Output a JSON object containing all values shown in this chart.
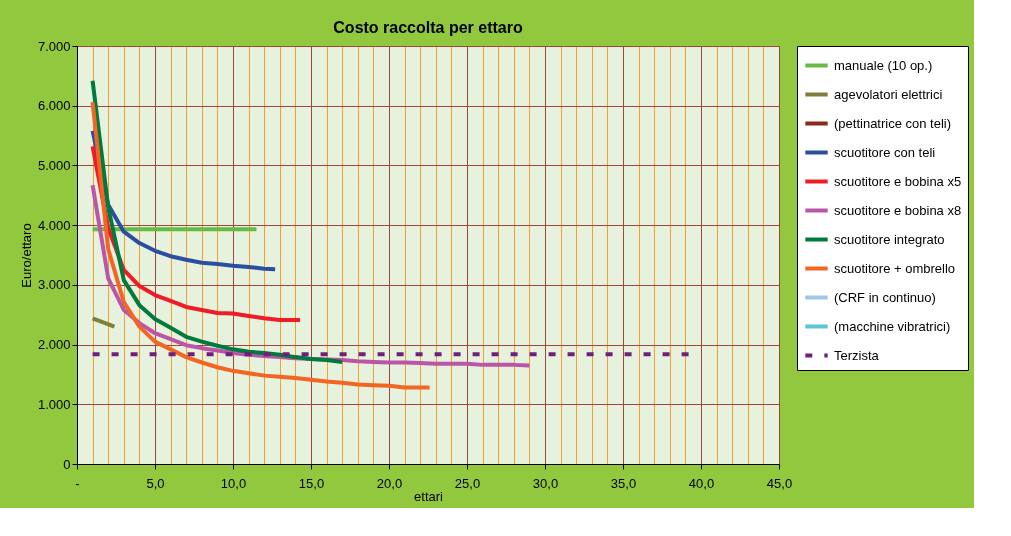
{
  "chart_data": {
    "type": "line",
    "title": "Costo raccolta per ettaro",
    "xlabel": "ettari",
    "ylabel": "Euro/ettaro",
    "xlim": [
      0,
      45
    ],
    "ylim": [
      0,
      7000
    ],
    "xticks": [
      {
        "value": 0,
        "label": "-"
      },
      {
        "value": 1,
        "label": null
      },
      {
        "value": 2,
        "label": null
      },
      {
        "value": 3,
        "label": null
      },
      {
        "value": 4,
        "label": null
      },
      {
        "value": 5,
        "label": "5,0"
      },
      {
        "value": 6,
        "label": null
      },
      {
        "value": 7,
        "label": null
      },
      {
        "value": 8,
        "label": null
      },
      {
        "value": 9,
        "label": null
      },
      {
        "value": 10,
        "label": "10,0"
      },
      {
        "value": 11,
        "label": null
      },
      {
        "value": 12,
        "label": null
      },
      {
        "value": 13,
        "label": null
      },
      {
        "value": 14,
        "label": null
      },
      {
        "value": 15,
        "label": "15,0"
      },
      {
        "value": 16,
        "label": null
      },
      {
        "value": 17,
        "label": null
      },
      {
        "value": 18,
        "label": null
      },
      {
        "value": 19,
        "label": null
      },
      {
        "value": 20,
        "label": "20,0"
      },
      {
        "value": 21,
        "label": null
      },
      {
        "value": 22,
        "label": null
      },
      {
        "value": 23,
        "label": null
      },
      {
        "value": 24,
        "label": null
      },
      {
        "value": 25,
        "label": "25,0"
      },
      {
        "value": 26,
        "label": null
      },
      {
        "value": 27,
        "label": null
      },
      {
        "value": 28,
        "label": null
      },
      {
        "value": 29,
        "label": null
      },
      {
        "value": 30,
        "label": "30,0"
      },
      {
        "value": 31,
        "label": null
      },
      {
        "value": 32,
        "label": null
      },
      {
        "value": 33,
        "label": null
      },
      {
        "value": 34,
        "label": null
      },
      {
        "value": 35,
        "label": "35,0"
      },
      {
        "value": 36,
        "label": null
      },
      {
        "value": 37,
        "label": null
      },
      {
        "value": 38,
        "label": null
      },
      {
        "value": 39,
        "label": null
      },
      {
        "value": 40,
        "label": "40,0"
      },
      {
        "value": 41,
        "label": null
      },
      {
        "value": 42,
        "label": null
      },
      {
        "value": 43,
        "label": null
      },
      {
        "value": 44,
        "label": null
      },
      {
        "value": 45,
        "label": "45,0"
      }
    ],
    "yticks": [
      0,
      {
        "value": 1000,
        "label": "1.000"
      },
      {
        "value": 2000,
        "label": "2.000"
      },
      {
        "value": 3000,
        "label": "3.000"
      },
      {
        "value": 4000,
        "label": "4.000"
      },
      {
        "value": 5000,
        "label": "5.000"
      },
      {
        "value": 6000,
        "label": "6.000"
      },
      {
        "value": 7000,
        "label": "7.000"
      }
    ],
    "grid": true,
    "legend": "right",
    "series": [
      {
        "name": "manuale (10 op.)",
        "color": "#66bb44",
        "x": [
          1,
          11.5
        ],
        "values": [
          3930,
          3930
        ]
      },
      {
        "name": "agevolatori elettrici",
        "color": "#7f7f3a",
        "x": [
          1,
          2.4
        ],
        "values": [
          2440,
          2300
        ]
      },
      {
        "name": "(pettinatrice con teli)",
        "color": "#8b2a1a"
      },
      {
        "name": "scuotitore con teli",
        "color": "#2a4fa0",
        "x": [
          1,
          2,
          3,
          4,
          5,
          6,
          7,
          8,
          9,
          10,
          11,
          12,
          12.7
        ],
        "values": [
          5580,
          4340,
          3890,
          3700,
          3570,
          3480,
          3420,
          3370,
          3350,
          3320,
          3300,
          3270,
          3260
        ]
      },
      {
        "name": "scuotitore e bobina x5",
        "color": "#ee1c24",
        "x": [
          1,
          2,
          3,
          4,
          5,
          6,
          7,
          8,
          9,
          10,
          11,
          12,
          13,
          14.3
        ],
        "values": [
          5320,
          3950,
          3250,
          2980,
          2830,
          2730,
          2630,
          2580,
          2530,
          2520,
          2480,
          2440,
          2410,
          2410
        ]
      },
      {
        "name": "scuotitore e bobina x8",
        "color": "#bb55a8",
        "x": [
          1,
          2,
          3,
          4,
          5,
          6,
          7,
          8,
          9,
          10,
          11,
          12,
          13,
          14,
          15,
          16,
          17,
          18,
          19,
          20,
          21,
          22,
          23,
          24,
          25,
          26,
          27,
          28,
          29
        ],
        "values": [
          4670,
          3110,
          2580,
          2360,
          2190,
          2090,
          1990,
          1940,
          1900,
          1860,
          1830,
          1810,
          1790,
          1770,
          1760,
          1750,
          1740,
          1720,
          1710,
          1700,
          1700,
          1690,
          1680,
          1680,
          1680,
          1660,
          1660,
          1660,
          1650
        ]
      },
      {
        "name": "scuotitore integrato",
        "color": "#007a3d",
        "x": [
          1,
          2,
          3,
          4,
          5,
          6,
          7,
          8,
          9,
          10,
          11,
          12,
          13,
          14,
          15,
          16,
          17
        ],
        "values": [
          6420,
          4300,
          3080,
          2660,
          2430,
          2280,
          2130,
          2050,
          1980,
          1920,
          1880,
          1860,
          1830,
          1790,
          1760,
          1740,
          1710
        ]
      },
      {
        "name": "scuotitore + ombrello",
        "color": "#f26522",
        "x": [
          1,
          2,
          3,
          4,
          5,
          6,
          7,
          8,
          9,
          10,
          11,
          12,
          13,
          14,
          15,
          16,
          17,
          18,
          19,
          20,
          21,
          22,
          22.6
        ],
        "values": [
          6060,
          3600,
          2710,
          2300,
          2050,
          1920,
          1790,
          1700,
          1620,
          1560,
          1520,
          1480,
          1460,
          1440,
          1410,
          1380,
          1360,
          1330,
          1320,
          1310,
          1280,
          1280,
          1280
        ]
      },
      {
        "name": "(CRF in continuo)",
        "color": "#9fc5e8"
      },
      {
        "name": "(macchine vibratrici)",
        "color": "#5bc5d8"
      },
      {
        "name": "Terzista",
        "color": "#6f2179",
        "line_style": "dashed",
        "x": [
          1,
          39.4
        ],
        "values": [
          1840,
          1840
        ]
      }
    ]
  }
}
